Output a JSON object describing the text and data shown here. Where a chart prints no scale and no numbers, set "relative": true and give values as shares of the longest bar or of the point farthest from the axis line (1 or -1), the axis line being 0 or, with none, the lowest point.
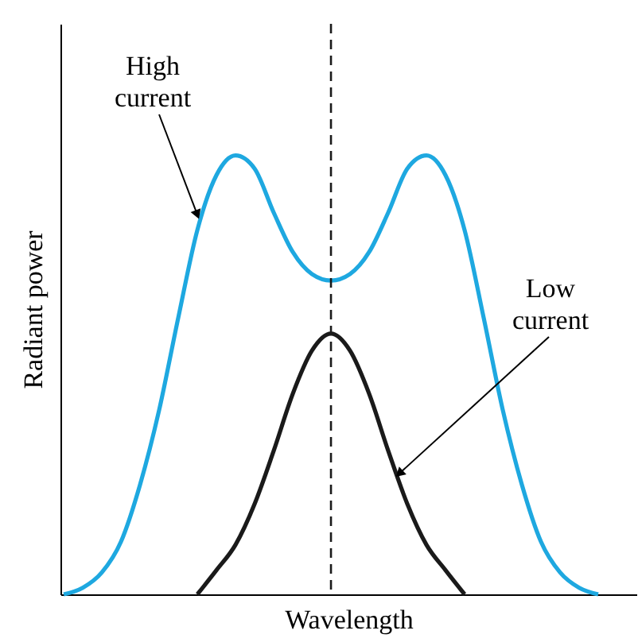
{
  "chart_data": {
    "type": "line",
    "relative": true,
    "xlabel": "Wavelength",
    "ylabel": "Radiant power",
    "tick_labels": false,
    "marker": "none",
    "line_style": "solid",
    "categories": [
      null,
      null,
      null,
      null,
      null,
      null,
      null,
      null,
      null,
      null,
      null,
      null,
      null,
      null,
      null,
      null,
      null,
      null,
      null,
      null,
      null,
      null,
      null,
      null,
      null,
      null,
      null,
      null,
      null
    ],
    "series": [
      {
        "color": "#1ea8e0",
        "values": [
          0,
          0.015,
          0.05,
          0.12,
          0.25,
          0.42,
          0.63,
          0.83,
          0.955,
          1,
          0.97,
          0.87,
          0.78,
          0.73,
          0.715,
          0.73,
          0.78,
          0.87,
          0.97,
          1,
          0.955,
          0.83,
          0.63,
          0.42,
          0.25,
          0.12,
          0.05,
          0.015,
          0
        ]
      },
      {
        "color": "#1a1a1a",
        "values": [
          null,
          null,
          null,
          null,
          null,
          null,
          null,
          0,
          0.055,
          0.113,
          0.206,
          0.327,
          0.457,
          0.555,
          0.594,
          0.555,
          0.457,
          0.327,
          0.206,
          0.113,
          0.055,
          0,
          null,
          null,
          null,
          null,
          null,
          null,
          null
        ]
      }
    ],
    "annotations": [
      "High current",
      "Low current"
    ]
  }
}
